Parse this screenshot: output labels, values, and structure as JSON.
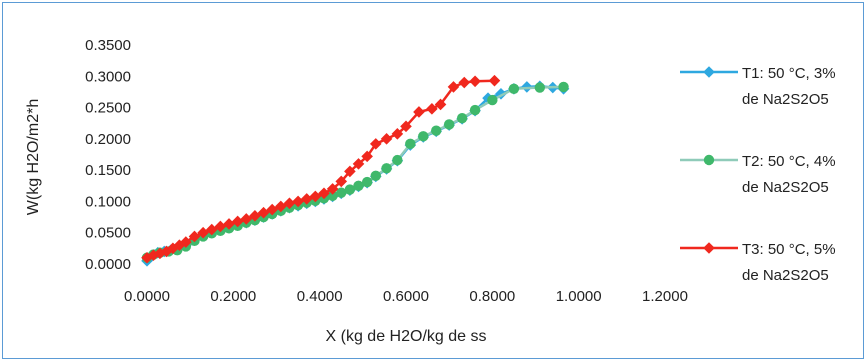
{
  "chart_data": {
    "type": "line",
    "xlabel": "X (kg de H2O/kg de ss",
    "ylabel": "W(kg H2O/m2*h",
    "xlim": [
      0,
      1.2
    ],
    "ylim": [
      0,
      0.35
    ],
    "x_ticks": [
      "0.0000",
      "0.2000",
      "0.4000",
      "0.6000",
      "0.8000",
      "1.0000",
      "1.2000"
    ],
    "y_ticks": [
      "0.0000",
      "0.0500",
      "0.1000",
      "0.1500",
      "0.2000",
      "0.2500",
      "0.3000",
      "0.3500"
    ],
    "grid": false,
    "legend_position": "right",
    "series": [
      {
        "name_lines": [
          "T1: 50 °C, 3%",
          "de Na2S2O5"
        ],
        "color": "#2ea8e0",
        "marker": "diamond",
        "points": [
          [
            0.0,
            0.005
          ],
          [
            0.01,
            0.012
          ],
          [
            0.025,
            0.018
          ],
          [
            0.04,
            0.02
          ],
          [
            0.055,
            0.022
          ],
          [
            0.07,
            0.025
          ],
          [
            0.09,
            0.03
          ],
          [
            0.11,
            0.04
          ],
          [
            0.13,
            0.046
          ],
          [
            0.15,
            0.05
          ],
          [
            0.17,
            0.054
          ],
          [
            0.19,
            0.058
          ],
          [
            0.21,
            0.062
          ],
          [
            0.23,
            0.066
          ],
          [
            0.25,
            0.07
          ],
          [
            0.27,
            0.075
          ],
          [
            0.29,
            0.08
          ],
          [
            0.31,
            0.085
          ],
          [
            0.33,
            0.09
          ],
          [
            0.35,
            0.093
          ],
          [
            0.37,
            0.097
          ],
          [
            0.39,
            0.1
          ],
          [
            0.41,
            0.104
          ],
          [
            0.43,
            0.108
          ],
          [
            0.45,
            0.113
          ],
          [
            0.47,
            0.118
          ],
          [
            0.49,
            0.124
          ],
          [
            0.51,
            0.13
          ],
          [
            0.53,
            0.14
          ],
          [
            0.555,
            0.152
          ],
          [
            0.58,
            0.165
          ],
          [
            0.61,
            0.19
          ],
          [
            0.64,
            0.203
          ],
          [
            0.67,
            0.212
          ],
          [
            0.7,
            0.222
          ],
          [
            0.73,
            0.232
          ],
          [
            0.76,
            0.245
          ],
          [
            0.79,
            0.265
          ],
          [
            0.82,
            0.272
          ],
          [
            0.85,
            0.28
          ],
          [
            0.88,
            0.283
          ],
          [
            0.91,
            0.284
          ],
          [
            0.94,
            0.282
          ],
          [
            0.965,
            0.28
          ]
        ]
      },
      {
        "name_lines": [
          "T2: 50 °C, 4%",
          "de Na2S2O5"
        ],
        "color": "#3fb86b",
        "line_color": "#8fcbb9",
        "marker": "circle",
        "points": [
          [
            0.0,
            0.01
          ],
          [
            0.015,
            0.015
          ],
          [
            0.03,
            0.018
          ],
          [
            0.05,
            0.02
          ],
          [
            0.07,
            0.022
          ],
          [
            0.09,
            0.028
          ],
          [
            0.11,
            0.037
          ],
          [
            0.13,
            0.044
          ],
          [
            0.15,
            0.049
          ],
          [
            0.17,
            0.053
          ],
          [
            0.19,
            0.057
          ],
          [
            0.21,
            0.061
          ],
          [
            0.23,
            0.066
          ],
          [
            0.25,
            0.07
          ],
          [
            0.27,
            0.075
          ],
          [
            0.29,
            0.08
          ],
          [
            0.31,
            0.085
          ],
          [
            0.33,
            0.09
          ],
          [
            0.35,
            0.094
          ],
          [
            0.37,
            0.098
          ],
          [
            0.39,
            0.101
          ],
          [
            0.41,
            0.105
          ],
          [
            0.43,
            0.109
          ],
          [
            0.45,
            0.114
          ],
          [
            0.47,
            0.119
          ],
          [
            0.49,
            0.125
          ],
          [
            0.51,
            0.131
          ],
          [
            0.53,
            0.141
          ],
          [
            0.555,
            0.153
          ],
          [
            0.58,
            0.166
          ],
          [
            0.61,
            0.192
          ],
          [
            0.64,
            0.204
          ],
          [
            0.67,
            0.213
          ],
          [
            0.7,
            0.223
          ],
          [
            0.73,
            0.233
          ],
          [
            0.76,
            0.246
          ],
          [
            0.8,
            0.262
          ],
          [
            0.85,
            0.28
          ],
          [
            0.91,
            0.282
          ],
          [
            0.965,
            0.283
          ]
        ]
      },
      {
        "name_lines": [
          "T3: 50 °C, 5%",
          "de Na2S2O5"
        ],
        "color": "#f0281e",
        "marker": "diamond",
        "points": [
          [
            0.0,
            0.01
          ],
          [
            0.015,
            0.014
          ],
          [
            0.03,
            0.017
          ],
          [
            0.045,
            0.02
          ],
          [
            0.06,
            0.025
          ],
          [
            0.075,
            0.03
          ],
          [
            0.09,
            0.035
          ],
          [
            0.11,
            0.044
          ],
          [
            0.13,
            0.05
          ],
          [
            0.15,
            0.055
          ],
          [
            0.17,
            0.06
          ],
          [
            0.19,
            0.064
          ],
          [
            0.21,
            0.068
          ],
          [
            0.23,
            0.072
          ],
          [
            0.25,
            0.077
          ],
          [
            0.27,
            0.082
          ],
          [
            0.29,
            0.087
          ],
          [
            0.31,
            0.092
          ],
          [
            0.33,
            0.097
          ],
          [
            0.35,
            0.1
          ],
          [
            0.37,
            0.104
          ],
          [
            0.39,
            0.108
          ],
          [
            0.41,
            0.113
          ],
          [
            0.43,
            0.12
          ],
          [
            0.45,
            0.132
          ],
          [
            0.47,
            0.148
          ],
          [
            0.49,
            0.16
          ],
          [
            0.51,
            0.172
          ],
          [
            0.53,
            0.192
          ],
          [
            0.555,
            0.2
          ],
          [
            0.58,
            0.208
          ],
          [
            0.6,
            0.22
          ],
          [
            0.63,
            0.243
          ],
          [
            0.66,
            0.248
          ],
          [
            0.68,
            0.255
          ],
          [
            0.71,
            0.283
          ],
          [
            0.735,
            0.29
          ],
          [
            0.76,
            0.292
          ],
          [
            0.805,
            0.293
          ]
        ]
      }
    ]
  }
}
